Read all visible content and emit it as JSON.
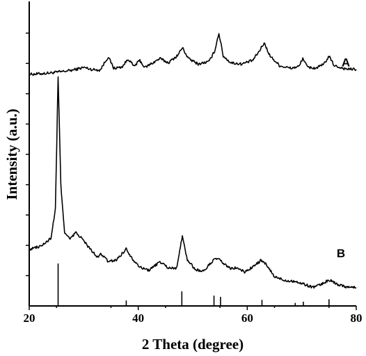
{
  "chart_data": {
    "type": "line",
    "xlabel": "2 Theta (degree)",
    "ylabel": "Intensity (a.u.)",
    "xlim": [
      20,
      80
    ],
    "x_ticks": [
      "20",
      "40",
      "60",
      "80"
    ],
    "x_tick_values": [
      20,
      40,
      60,
      80
    ],
    "ylim": [
      0,
      100
    ],
    "y_minor_ticks": [
      1,
      2,
      3,
      4,
      5,
      6,
      7,
      8,
      9
    ],
    "grid": false,
    "series": [
      {
        "name": "A",
        "baseline": 76,
        "points": [
          [
            20,
            76.4
          ],
          [
            22,
            76.6
          ],
          [
            24,
            76.9
          ],
          [
            26,
            77.3
          ],
          [
            28,
            77.8
          ],
          [
            30,
            78.7
          ],
          [
            31.5,
            78.0
          ],
          [
            33,
            77.8
          ],
          [
            34.5,
            82.2
          ],
          [
            35.5,
            78.4
          ],
          [
            37,
            78.8
          ],
          [
            38.2,
            81.5
          ],
          [
            39.2,
            79.0
          ],
          [
            40.3,
            81.0
          ],
          [
            41.2,
            78.6
          ],
          [
            42.5,
            80.0
          ],
          [
            44,
            81.6
          ],
          [
            45.5,
            80.2
          ],
          [
            47.2,
            82.6
          ],
          [
            48.1,
            85.2
          ],
          [
            49.2,
            81.6
          ],
          [
            51,
            79.8
          ],
          [
            53,
            80.6
          ],
          [
            54,
            84.0
          ],
          [
            54.8,
            90.0
          ],
          [
            55.6,
            82.4
          ],
          [
            57,
            80.2
          ],
          [
            59,
            79.8
          ],
          [
            61,
            81.0
          ],
          [
            62.2,
            84.0
          ],
          [
            63.1,
            86.8
          ],
          [
            64.2,
            82.4
          ],
          [
            66,
            79.2
          ],
          [
            68,
            78.4
          ],
          [
            69.5,
            79.0
          ],
          [
            70.2,
            81.8
          ],
          [
            71,
            78.8
          ],
          [
            72.5,
            78.4
          ],
          [
            74,
            79.6
          ],
          [
            75,
            82.3
          ],
          [
            76,
            79.2
          ],
          [
            78,
            78.2
          ],
          [
            80,
            78.0
          ]
        ]
      },
      {
        "name": "B",
        "baseline": 10,
        "points": [
          [
            20,
            18.6
          ],
          [
            21,
            19.2
          ],
          [
            22,
            19.6
          ],
          [
            23,
            20.8
          ],
          [
            24,
            22.4
          ],
          [
            24.8,
            32.0
          ],
          [
            25.3,
            75.4
          ],
          [
            25.8,
            40.0
          ],
          [
            26.5,
            24.0
          ],
          [
            27.5,
            22.0
          ],
          [
            28.5,
            24.2
          ],
          [
            29.5,
            22.6
          ],
          [
            31,
            19.2
          ],
          [
            32.5,
            16.0
          ],
          [
            33.2,
            17.2
          ],
          [
            34.5,
            14.6
          ],
          [
            36,
            15.2
          ],
          [
            37.8,
            18.8
          ],
          [
            39,
            15.4
          ],
          [
            40.5,
            12.6
          ],
          [
            42,
            11.8
          ],
          [
            44,
            14.6
          ],
          [
            45.5,
            12.6
          ],
          [
            47,
            12.4
          ],
          [
            48.1,
            23.0
          ],
          [
            49,
            15.2
          ],
          [
            50.5,
            12.0
          ],
          [
            52,
            11.4
          ],
          [
            53.5,
            14.6
          ],
          [
            54.5,
            15.8
          ],
          [
            55.5,
            14.2
          ],
          [
            57,
            12.2
          ],
          [
            58,
            12.6
          ],
          [
            59.5,
            11.2
          ],
          [
            61,
            12.8
          ],
          [
            62.5,
            15.0
          ],
          [
            63.5,
            13.6
          ],
          [
            65,
            9.6
          ],
          [
            67,
            8.4
          ],
          [
            68.5,
            8.2
          ],
          [
            70,
            7.4
          ],
          [
            72,
            6.2
          ],
          [
            73.5,
            7.0
          ],
          [
            75,
            8.6
          ],
          [
            76.5,
            7.2
          ],
          [
            78,
            6.4
          ],
          [
            80,
            6.0
          ]
        ]
      }
    ],
    "reference_lines": {
      "positions": [
        25.3,
        37.8,
        48.0,
        53.9,
        55.1,
        62.7,
        68.8,
        70.3,
        75.0
      ],
      "heights": [
        14.0,
        1.8,
        4.8,
        3.4,
        3.0,
        2.0,
        1.0,
        1.4,
        2.2
      ]
    }
  }
}
